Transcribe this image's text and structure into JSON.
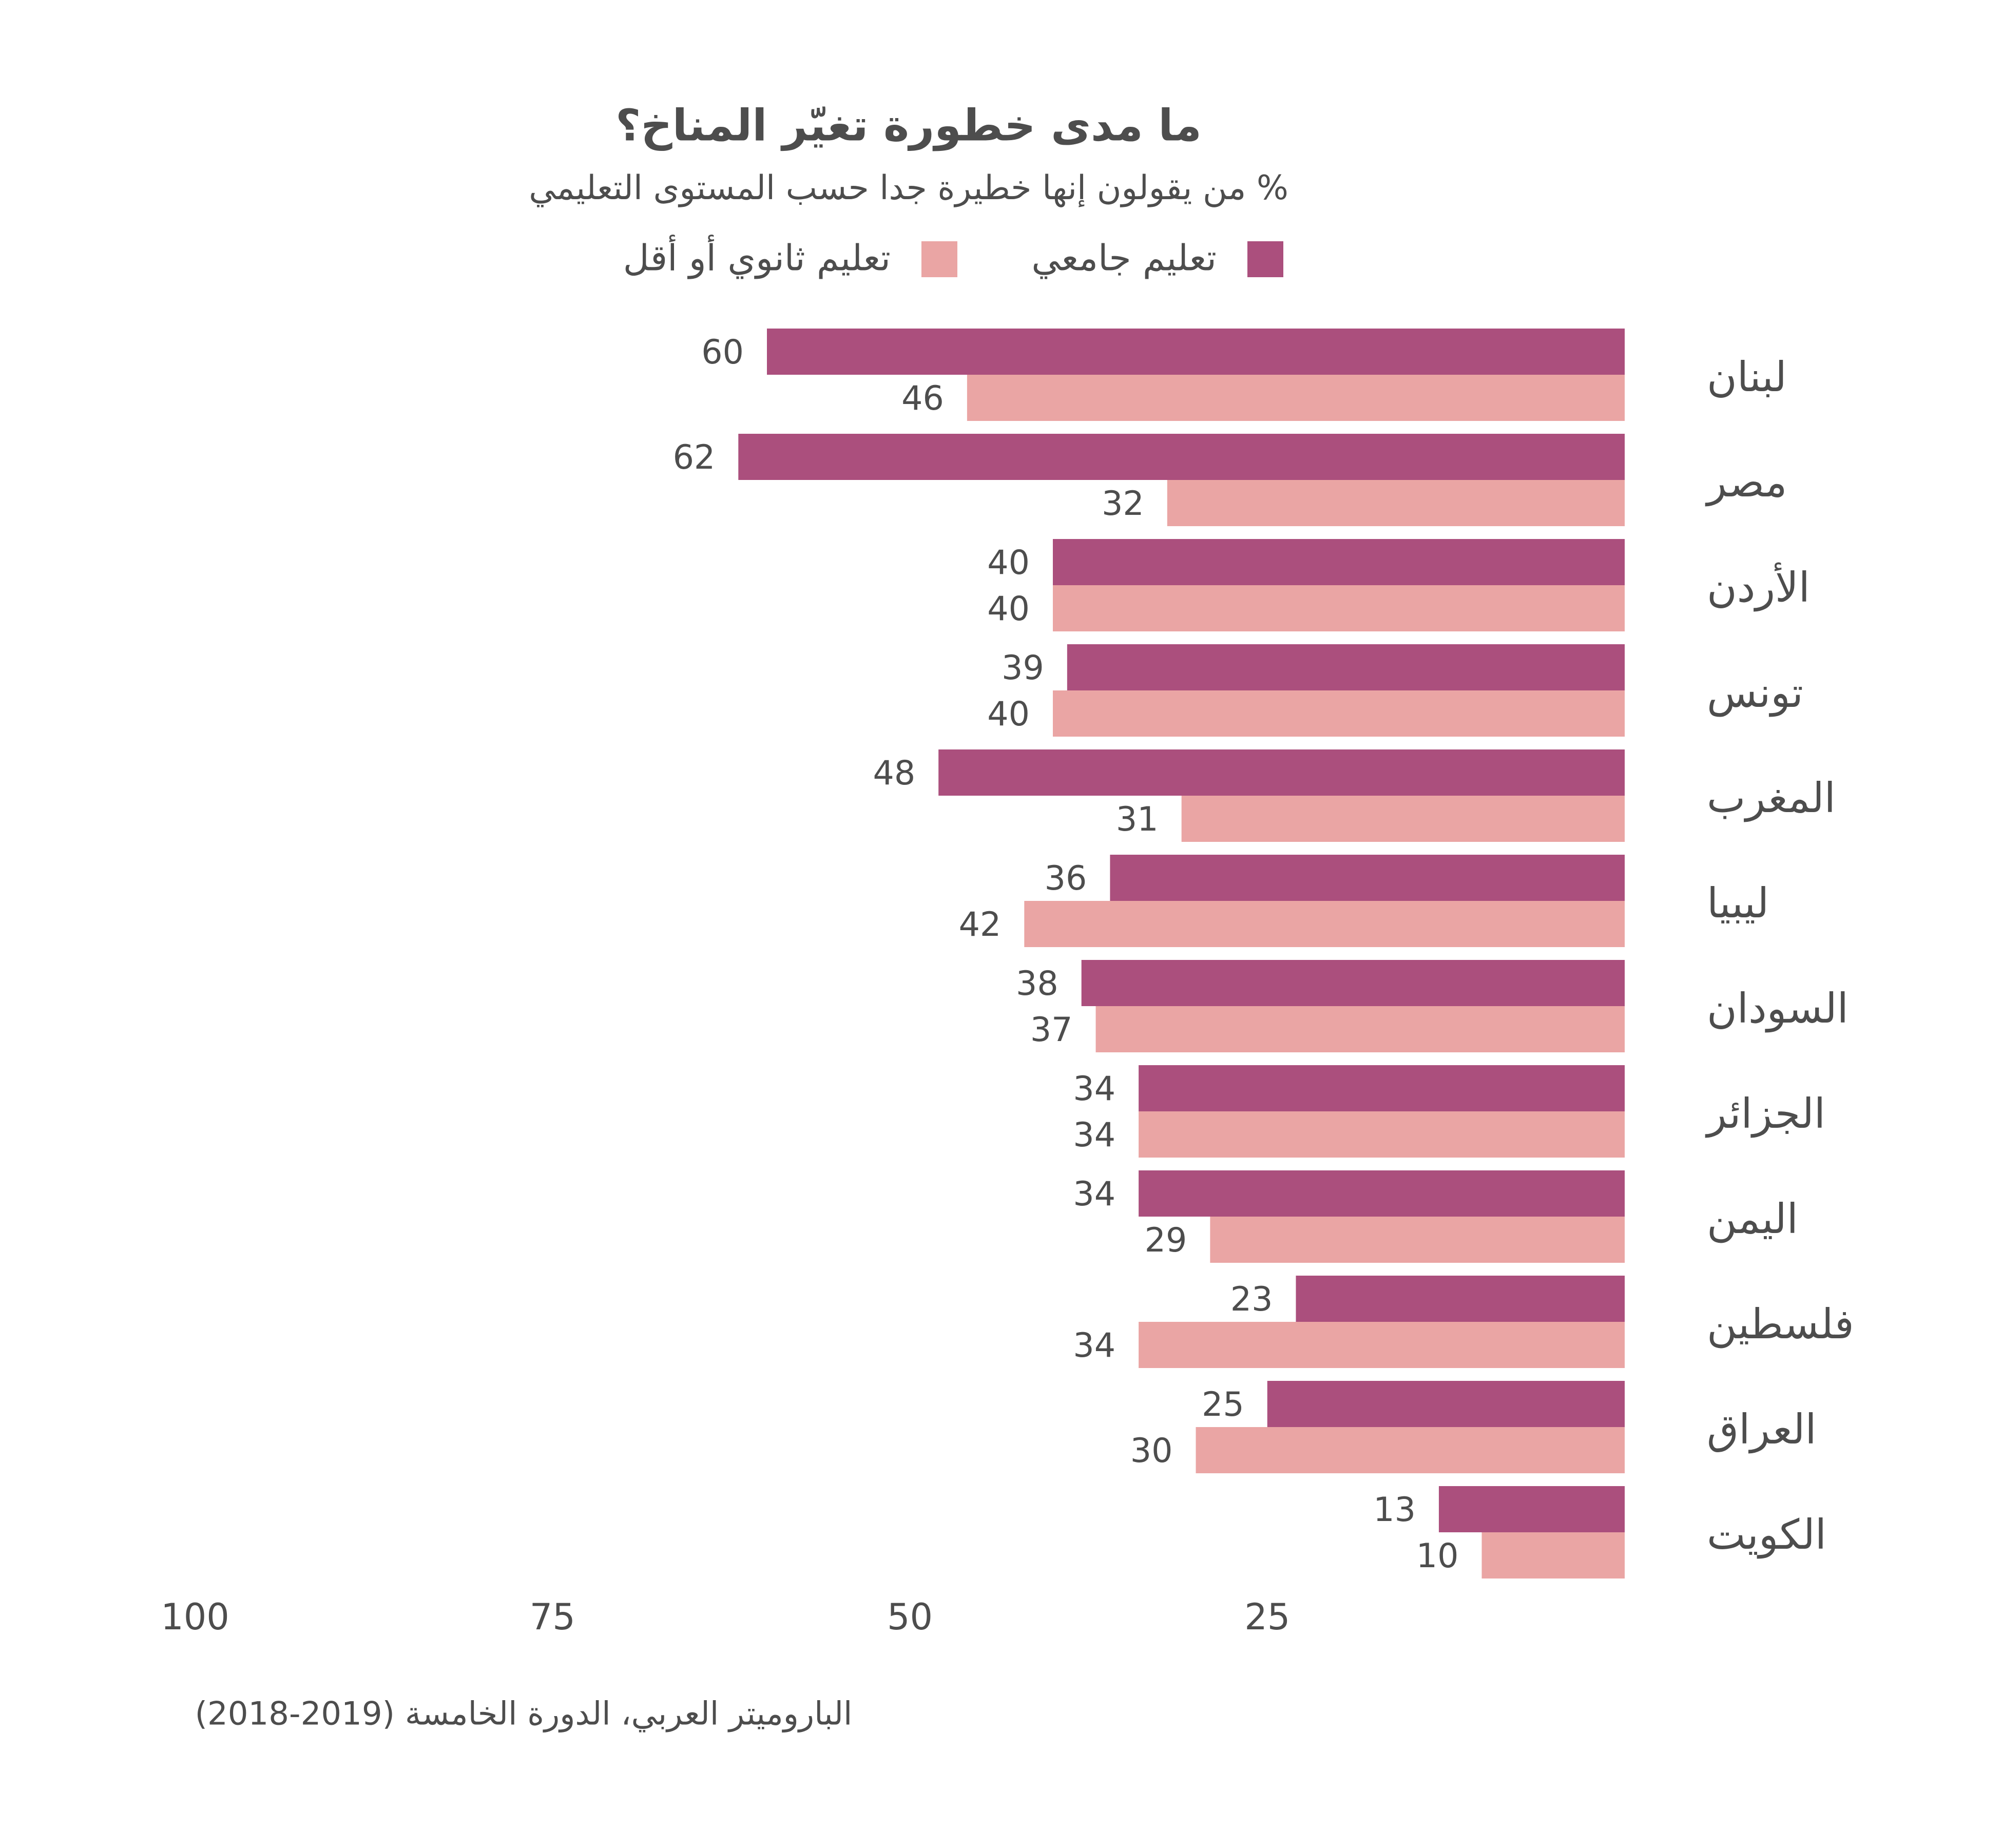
{
  "chart_data": {
    "type": "bar",
    "orientation": "horizontal",
    "title": "ما مدى خطورة تغيّر المناخ؟",
    "subtitle": "% من يقولون إنها خطيرة جدا حسب المستوى التعليمي",
    "categories": [
      "لبنان",
      "مصر",
      "الأردن",
      "تونس",
      "المغرب",
      "ليبيا",
      "السودان",
      "الجزائر",
      "اليمن",
      "فلسطين",
      "العراق",
      "الكويت"
    ],
    "series": [
      {
        "name": "تعليم جامعي",
        "color": "#ab4f7d",
        "values": [
          60,
          62,
          40,
          39,
          48,
          36,
          38,
          34,
          34,
          23,
          25,
          13
        ]
      },
      {
        "name": "تعليم ثانوي أو أقل",
        "color": "#eaa5a4",
        "values": [
          46,
          32,
          40,
          40,
          31,
          42,
          37,
          34,
          29,
          34,
          30,
          10
        ]
      }
    ],
    "xlim": [
      0,
      100
    ],
    "xticks": [
      25,
      50,
      75,
      100
    ],
    "reversed_x": true,
    "source": "الباروميتر العربي، الدورة الخامسة (2019-2018)"
  }
}
